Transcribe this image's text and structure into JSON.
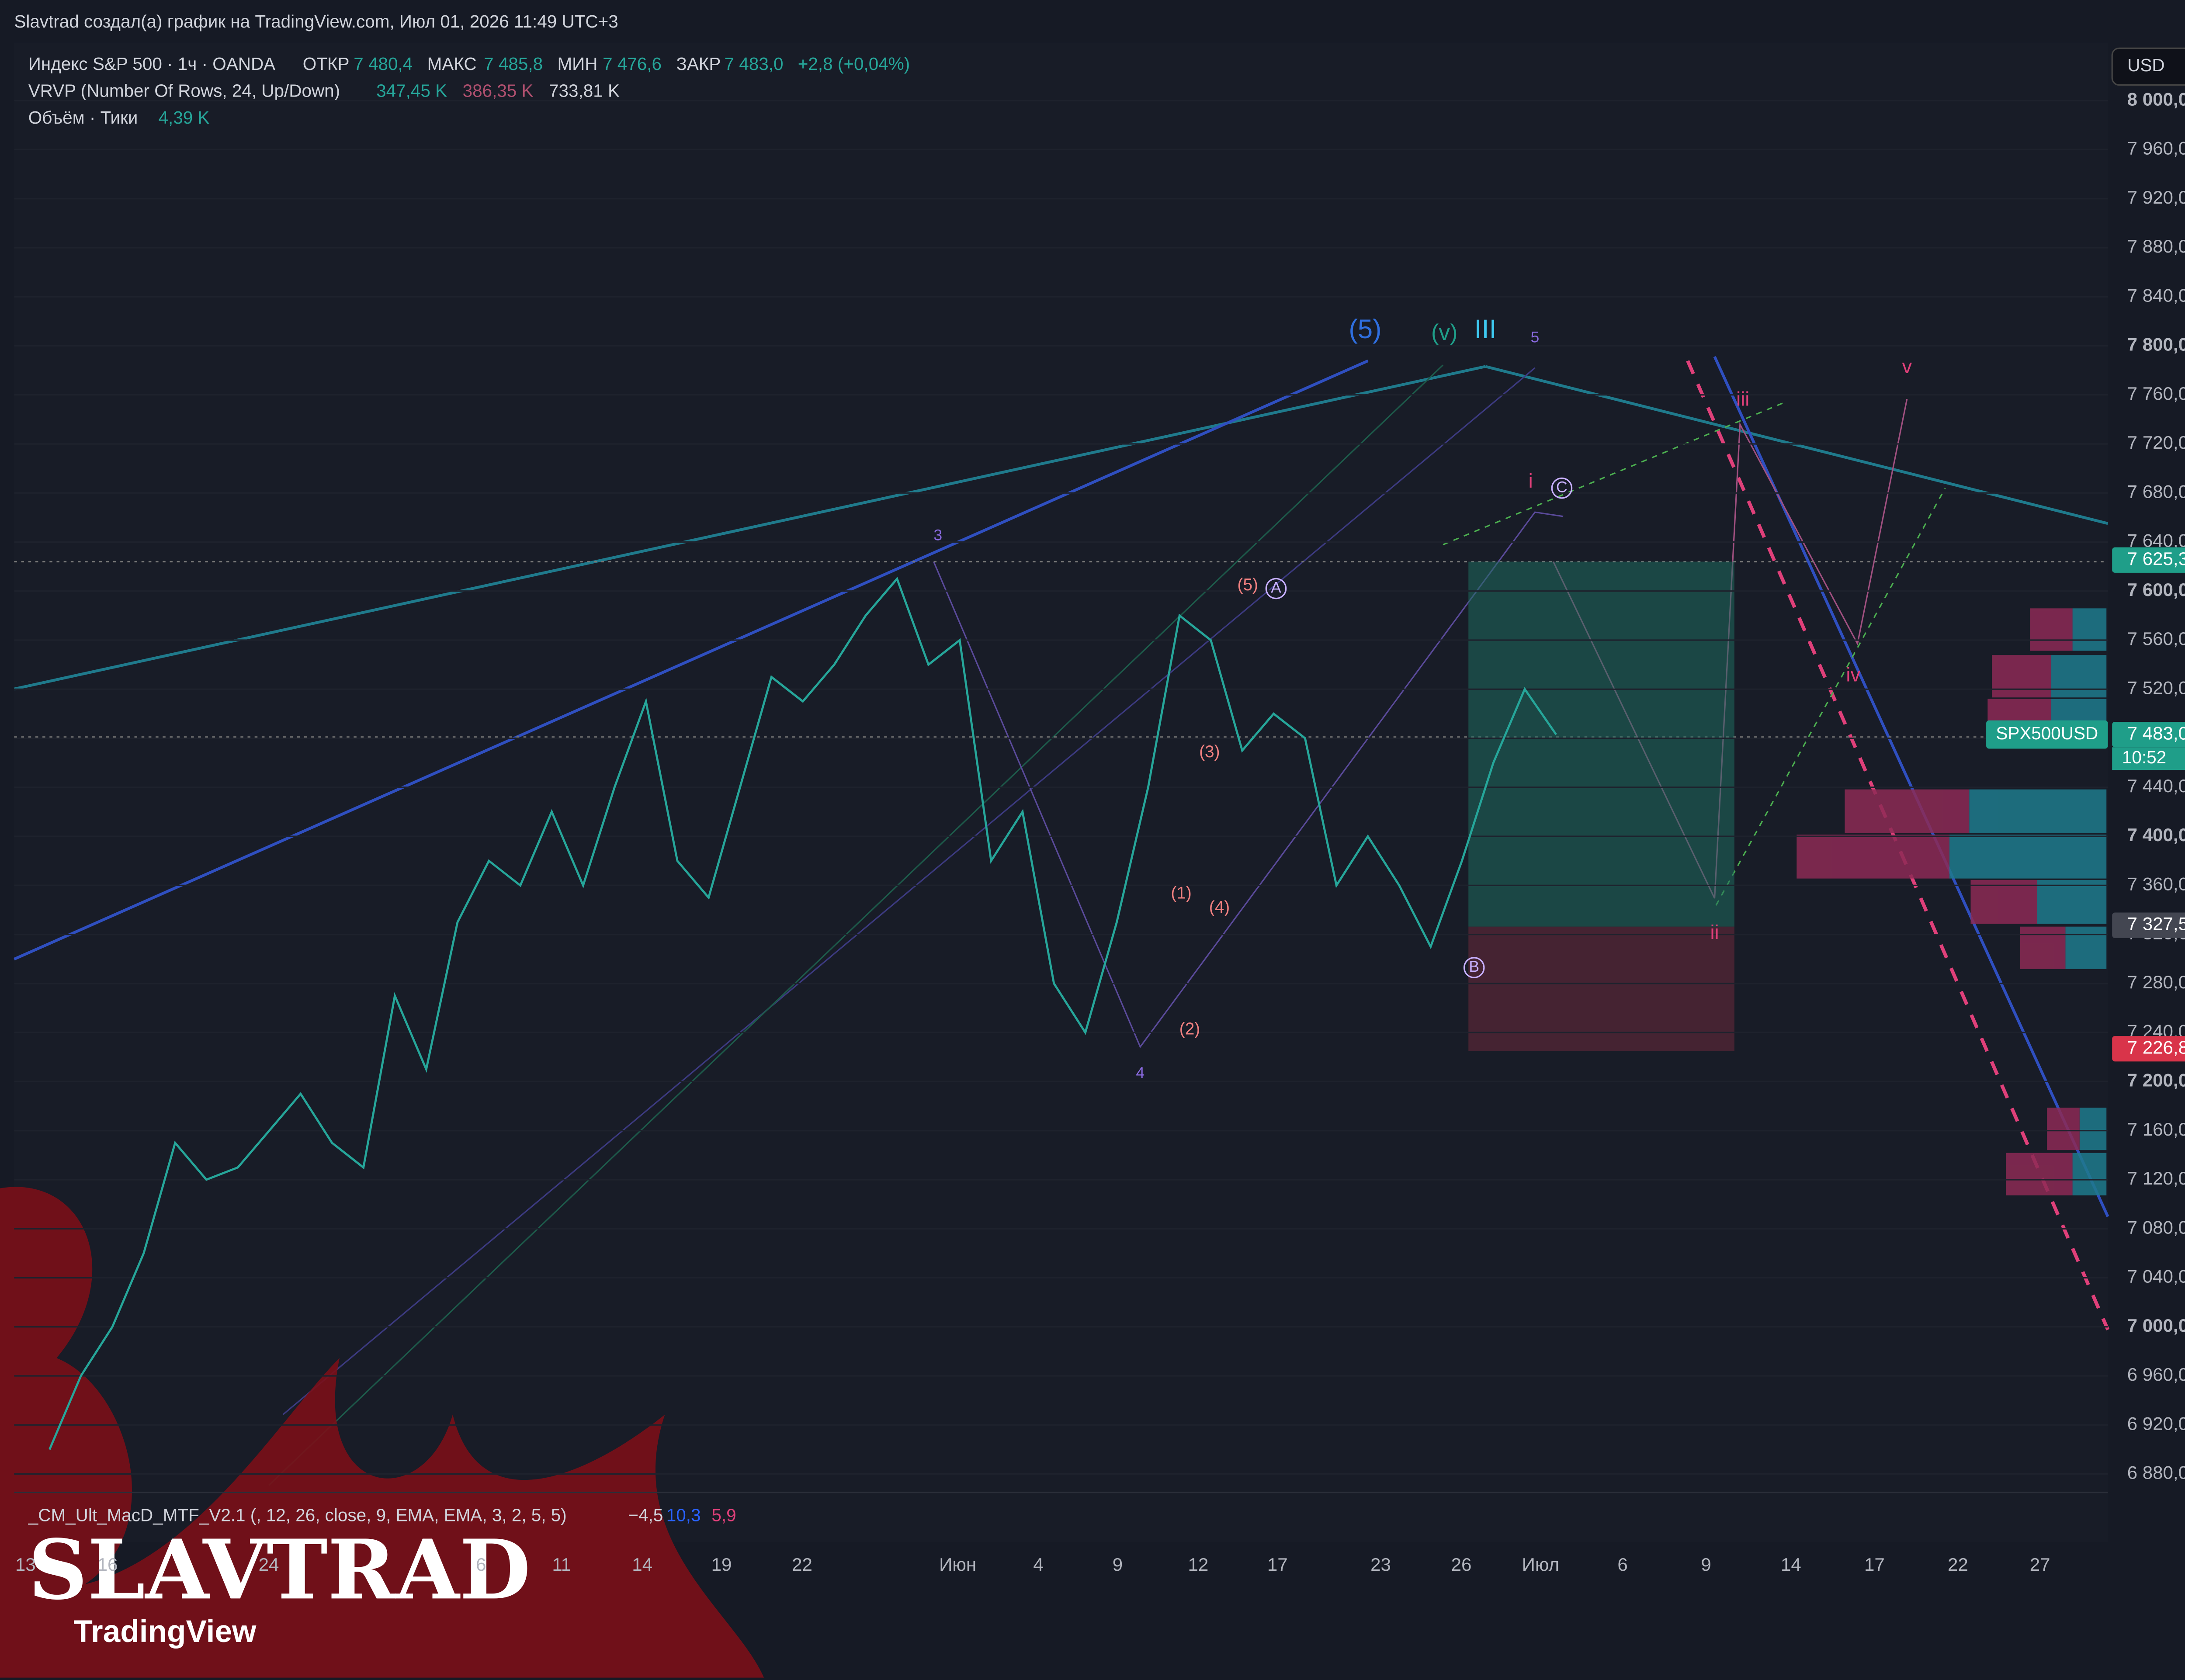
{
  "header": {
    "title": "Slavtrad создал(а) график на TradingView.com, Июл 01, 2026 11:49 UTC+3"
  },
  "legend": {
    "symbol": "Индекс S&P 500 · 1ч · OANDA",
    "open_label": "ОТКР",
    "open": "7 480,4",
    "high_label": "МАКС",
    "high": "7 485,8",
    "low_label": "МИН",
    "low": "7 476,6",
    "close_label": "ЗАКР",
    "close": "7 483,0",
    "change": "+2,8 (+0,04%)",
    "vrvp": "VRVP (Number Of Rows, 24, Up/Down)",
    "vrvp_up": "347,45 K",
    "vrvp_down": "386,35 K",
    "vrvp_total": "733,81 K",
    "volume": "Объём · Тики",
    "volume_value": "4,39 K"
  },
  "indicator": {
    "name": "_CM_Ult_MacD_MTF_V2.1 (, 12, 26, close, 9, EMA, EMA, 3, 2, 5, 5)",
    "v1": "−4,5",
    "v2": "10,3",
    "v3": "5,9"
  },
  "currency_button": "USD",
  "price_axis": [
    {
      "value": 8000,
      "label": "8 000,0"
    },
    {
      "value": 7960,
      "label": "7 960,0"
    },
    {
      "value": 7920,
      "label": "7 920,0"
    },
    {
      "value": 7880,
      "label": "7 880,0"
    },
    {
      "value": 7840,
      "label": "7 840,0"
    },
    {
      "value": 7800,
      "label": "7 800,0"
    },
    {
      "value": 7760,
      "label": "7 760,0"
    },
    {
      "value": 7720,
      "label": "7 720,0"
    },
    {
      "value": 7680,
      "label": "7 680,0"
    },
    {
      "value": 7640,
      "label": "7 640,0"
    },
    {
      "value": 7600,
      "label": "7 600,0"
    },
    {
      "value": 7560,
      "label": "7 560,0"
    },
    {
      "value": 7520,
      "label": "7 520,0"
    },
    {
      "value": 7480,
      "label": "7 480,0"
    },
    {
      "value": 7440,
      "label": "7 440,0"
    },
    {
      "value": 7400,
      "label": "7 400,0"
    },
    {
      "value": 7360,
      "label": "7 360,0"
    },
    {
      "value": 7320,
      "label": "7 320,0"
    },
    {
      "value": 7280,
      "label": "7 280,0"
    },
    {
      "value": 7240,
      "label": "7 240,0"
    },
    {
      "value": 7200,
      "label": "7 200,0"
    },
    {
      "value": 7160,
      "label": "7 160,0"
    },
    {
      "value": 7120,
      "label": "7 120,0"
    },
    {
      "value": 7080,
      "label": "7 080,0"
    },
    {
      "value": 7040,
      "label": "7 040,0"
    },
    {
      "value": 7000,
      "label": "7 000,0"
    },
    {
      "value": 6960,
      "label": "6 960,0"
    },
    {
      "value": 6920,
      "label": "6 920,0"
    },
    {
      "value": 6880,
      "label": "6 880,0"
    }
  ],
  "badges": [
    {
      "value": 7625.3,
      "label": "7 625,3"
    },
    {
      "value": 7483,
      "label": "7 483,0"
    },
    {
      "value": 7327.5,
      "label": "7 327,5"
    },
    {
      "value": 7226.8,
      "label": "7 226,8"
    }
  ],
  "symbol_badge": "SPX500USD",
  "countdown": "10:52",
  "time_axis": [
    "13",
    "16",
    "24",
    "6",
    "11",
    "14",
    "19",
    "22",
    "Июн",
    "4",
    "9",
    "12",
    "17",
    "23",
    "26",
    "Июл",
    "6",
    "9",
    "14",
    "17",
    "22",
    "27"
  ],
  "price": [
    6900,
    6960,
    7000,
    7060,
    7150,
    7120,
    7130,
    7160,
    7190,
    7150,
    7130,
    7270,
    7210,
    7330,
    7380,
    7360,
    7420,
    7360,
    7440,
    7510,
    7380,
    7350,
    7440,
    7530,
    7510,
    7540,
    7580,
    7610,
    7540,
    7560,
    7380,
    7420,
    7280,
    7240,
    7330,
    7440,
    7580,
    7560,
    7470,
    7500,
    7480,
    7360,
    7400,
    7360,
    7310,
    7380,
    7460,
    7520,
    7483
  ],
  "waves": [
    "(5)",
    "(v)",
    "III",
    "5",
    "3",
    "4",
    "i",
    "C",
    "A",
    "B",
    "(5)",
    "(1)",
    "(2)",
    "(3)",
    "(4)",
    "ii",
    "iii",
    "iv",
    "v"
  ],
  "watermark": "SLAVTRAD",
  "brand": "TradingView"
}
